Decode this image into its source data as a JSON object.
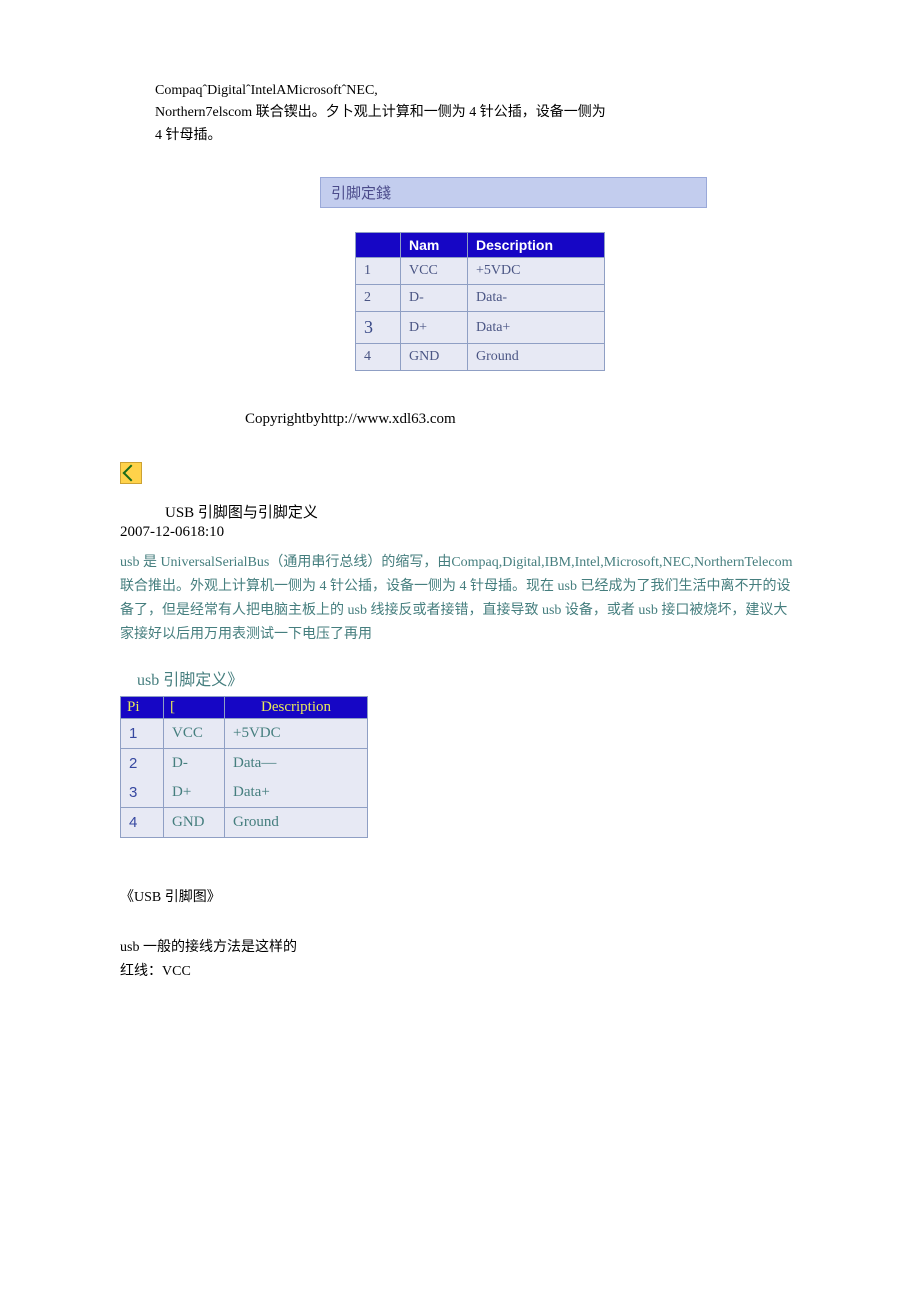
{
  "intro": {
    "line1": "CompaqˆDigitalˆIntelAMicrosoftˆNEC,",
    "line2": "Northern7elscom 联合锲出。夕卜观上计算和一侧为 4 针公插，设备一侧为",
    "line3": "4 针母插。"
  },
  "section_header": "引脚定錢",
  "table1": {
    "headers": {
      "pin": "",
      "name": "Nam",
      "desc": "Description"
    },
    "rows": [
      {
        "pin": "1",
        "name": "VCC",
        "desc": "+5VDC"
      },
      {
        "pin": "2",
        "name": "D-",
        "desc": "Data-"
      },
      {
        "pin": "3",
        "name": "D+",
        "desc": "Data+"
      },
      {
        "pin": "4",
        "name": "GND",
        "desc": "Ground"
      }
    ],
    "header_bg": "#1606c5",
    "header_fg": "#ffffff",
    "cell_bg": "#e7e9f4",
    "cell_fg": "#4a5584",
    "border_color": "#8f9fc4"
  },
  "copyright": "Copyrightbyhttp://www.xdl63.com",
  "article": {
    "title": "USB 引脚图与引脚定义",
    "date": "2007-12-0618:10",
    "body": "usb 是 UniversalSerialBus（通用串行总线）的缩写，由Compaq,Digital,IBM,Intel,Microsoft,NEC,NorthernTelecom 联合推出。外观上计算机一侧为 4 针公插，设备一侧为 4 针母插。现在 usb 已经成为了我们生活中离不开的设备了，但是经常有人把电脑主板上的 usb 线接反或者接错，直接导致 usb 设备，或者 usb 接口被烧坏，建议大家接好以后用万用表测试一下电压了再用"
  },
  "table2_heading": "usb 引脚定义》",
  "table2": {
    "headers": {
      "pin": "Pi",
      "name": "[",
      "desc": "Description"
    },
    "rows": [
      {
        "pin": "1",
        "name": "VCC",
        "desc": "+5VDC"
      },
      {
        "pin": "2",
        "name": "D-",
        "desc": "Data—"
      },
      {
        "pin": "3",
        "name": "D+",
        "desc": "Data+"
      },
      {
        "pin": "4",
        "name": "GND",
        "desc": "Ground"
      }
    ],
    "header_bg": "#1606c5",
    "header_fg": "#e8e85a",
    "cell_bg": "#e7e9f4",
    "cell_fg": "#457e7e",
    "pin_fg": "#3648a0",
    "border_color": "#8f9fc4"
  },
  "footer": {
    "pinout_title": "《USB 引脚图》",
    "wiring_intro": "usb 一般的接线方法是这样的",
    "wire_red": "红线：VCC"
  },
  "colors": {
    "section_header_bg": "#c3cdee",
    "section_header_border": "#9aa9d9",
    "section_header_fg": "#4a4a8a",
    "teal_text": "#457e7e",
    "background": "#ffffff",
    "icon_bg": "#ffd24a",
    "icon_border": "#cca233",
    "icon_arrow": "#1a6b1a"
  }
}
